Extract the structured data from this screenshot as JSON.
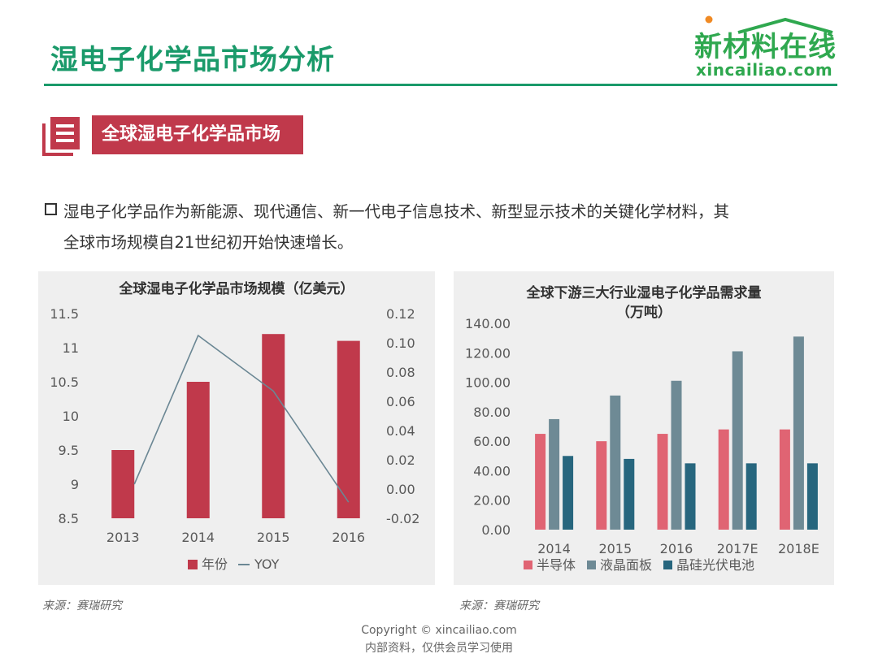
{
  "page": {
    "title": "湿电子化学品市场分析",
    "section_title": "全球湿电子化学品市场",
    "body_line1": "湿电子化学品作为新能源、现代通信、新一代电子信息技术、新型显示技术的关键化学材料，其",
    "body_line2": "全球市场规模自21世纪初开始快速增长。",
    "source_left": "来源：赛瑞研究",
    "source_right": "来源：赛瑞研究",
    "footer_line1": "Copyright © xincailiao.com",
    "footer_line2": "内部资料，仅供会员学习使用"
  },
  "logo": {
    "cn": "新材料在线",
    "en": "xincailiao.com"
  },
  "colors": {
    "accent_green": "#1a9a6a",
    "banner_red": "#c0394b",
    "bar_red": "#c0394b",
    "line_gray": "#6b8794",
    "semiconductor": "#e06473",
    "lcd": "#6e8a95",
    "pv": "#27667e"
  },
  "chart_data": [
    {
      "type": "bar",
      "title": "全球湿电子化学品市场规模（亿美元）",
      "categories": [
        "2013",
        "2014",
        "2015",
        "2016"
      ],
      "series": [
        {
          "name": "年份",
          "type": "bar",
          "axis": "left",
          "values": [
            9.5,
            10.5,
            11.2,
            11.1
          ]
        },
        {
          "name": "YOY",
          "type": "line",
          "axis": "right",
          "values": [
            null,
            0.105,
            0.067,
            -0.009
          ]
        }
      ],
      "ylim_left": [
        8.5,
        11.5
      ],
      "yticks_left": [
        "11.5",
        "11",
        "10.5",
        "10",
        "9.5",
        "9",
        "8.5"
      ],
      "ylim_right": [
        -0.02,
        0.12
      ],
      "yticks_right": [
        "0.12",
        "0.10",
        "0.08",
        "0.06",
        "0.04",
        "0.02",
        "0.00",
        "-0.02"
      ],
      "legend": [
        "年份",
        "YOY"
      ],
      "legend_position": "bottom",
      "grid": false
    },
    {
      "type": "bar",
      "title_line1": "全球下游三大行业湿电子化学品需求量",
      "title_line2": "（万吨）",
      "categories": [
        "2014",
        "2015",
        "2016",
        "2017E",
        "2018E"
      ],
      "series": [
        {
          "name": "半导体",
          "values": [
            65,
            60,
            65,
            68,
            68
          ]
        },
        {
          "name": "液晶面板",
          "values": [
            75,
            91,
            101,
            121,
            131
          ]
        },
        {
          "name": "晶硅光伏电池",
          "values": [
            50,
            48,
            45,
            45,
            45
          ]
        }
      ],
      "ylim": [
        0,
        140
      ],
      "yticks": [
        "140.00",
        "120.00",
        "100.00",
        "80.00",
        "60.00",
        "40.00",
        "20.00",
        "0.00"
      ],
      "legend": [
        "半导体",
        "液晶面板",
        "晶硅光伏电池"
      ],
      "legend_position": "bottom",
      "grid": false
    }
  ]
}
